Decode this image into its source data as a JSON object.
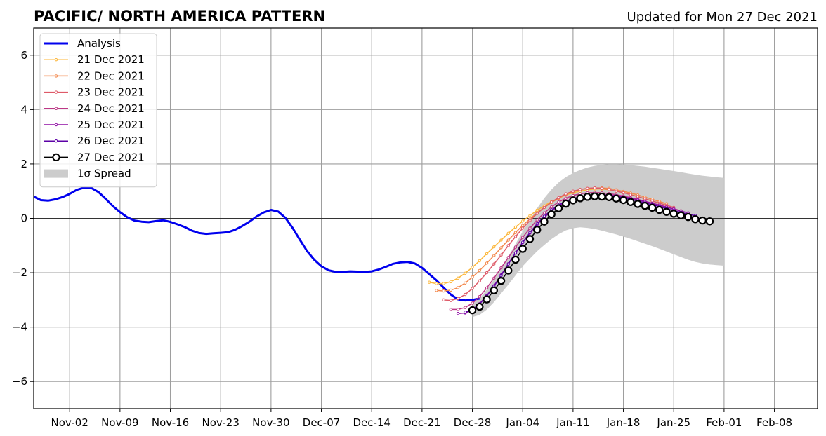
{
  "header": {
    "title": "PACIFIC/ NORTH AMERICA PATTERN",
    "updated": "Updated for Mon 27 Dec 2021"
  },
  "chart_data": {
    "type": "line",
    "title": "PACIFIC/ NORTH AMERICA PATTERN",
    "xlabel": "",
    "ylabel": "",
    "x_axis": "date",
    "xlim": [
      "2021-10-28",
      "2022-02-14"
    ],
    "ylim": [
      -7,
      7
    ],
    "y_ticks": [
      -6,
      -4,
      -2,
      0,
      2,
      4,
      6
    ],
    "y_tick_labels": [
      "−6",
      "−4",
      "−2",
      "0",
      "2",
      "4",
      "6"
    ],
    "x_ticks": [
      "2021-11-02",
      "2021-11-09",
      "2021-11-16",
      "2021-11-23",
      "2021-11-30",
      "2021-12-07",
      "2021-12-14",
      "2021-12-21",
      "2021-12-28",
      "2022-01-04",
      "2022-01-11",
      "2022-01-18",
      "2022-01-25",
      "2022-02-01",
      "2022-02-08"
    ],
    "x_tick_labels": [
      "Nov-02",
      "Nov-09",
      "Nov-16",
      "Nov-23",
      "Nov-30",
      "Dec-07",
      "Dec-14",
      "Dec-21",
      "Dec-28",
      "Jan-04",
      "Jan-11",
      "Jan-18",
      "Jan-25",
      "Feb-01",
      "Feb-08"
    ],
    "grid": true,
    "zero_line": true,
    "legend_position": "upper-left",
    "series": [
      {
        "name": "Analysis",
        "color": "#0000ee",
        "start": "2021-10-28",
        "values": [
          0.8,
          0.67,
          0.65,
          0.7,
          0.78,
          0.9,
          1.05,
          1.13,
          1.12,
          0.97,
          0.72,
          0.45,
          0.23,
          0.04,
          -0.08,
          -0.12,
          -0.14,
          -0.1,
          -0.07,
          -0.13,
          -0.22,
          -0.32,
          -0.45,
          -0.54,
          -0.57,
          -0.55,
          -0.53,
          -0.51,
          -0.42,
          -0.28,
          -0.12,
          0.07,
          0.22,
          0.31,
          0.25,
          0.02,
          -0.35,
          -0.78,
          -1.2,
          -1.52,
          -1.76,
          -1.91,
          -1.97,
          -1.97,
          -1.95,
          -1.96,
          -1.97,
          -1.95,
          -1.88,
          -1.78,
          -1.67,
          -1.62,
          -1.6,
          -1.66,
          -1.82,
          -2.05,
          -2.28,
          -2.55,
          -2.8,
          -2.98,
          -3.02,
          -3.0,
          -2.95
        ]
      },
      {
        "name": "21 Dec 2021",
        "color": "#fcb73a",
        "start": "2021-12-22",
        "values": [
          -2.35,
          -2.4,
          -2.4,
          -2.33,
          -2.2,
          -2.02,
          -1.8,
          -1.56,
          -1.3,
          -1.05,
          -0.8,
          -0.55,
          -0.32,
          -0.1,
          0.1,
          0.3,
          0.46,
          0.62,
          0.74,
          0.86,
          0.94,
          1.0,
          1.05,
          1.08,
          1.08,
          1.05,
          1.0,
          0.95,
          0.88,
          0.8,
          0.72,
          0.64,
          0.56,
          0.48
        ]
      },
      {
        "name": "22 Dec 2021",
        "color": "#f3884c",
        "start": "2021-12-23",
        "values": [
          -2.65,
          -2.67,
          -2.64,
          -2.55,
          -2.38,
          -2.16,
          -1.92,
          -1.65,
          -1.37,
          -1.08,
          -0.8,
          -0.52,
          -0.26,
          -0.02,
          0.2,
          0.4,
          0.58,
          0.74,
          0.88,
          0.98,
          1.06,
          1.1,
          1.12,
          1.12,
          1.1,
          1.05,
          0.99,
          0.93,
          0.86,
          0.78,
          0.7,
          0.62,
          0.54
        ]
      },
      {
        "name": "23 Dec 2021",
        "color": "#de5a68",
        "start": "2021-12-24",
        "values": [
          -3.0,
          -3.02,
          -2.95,
          -2.8,
          -2.58,
          -2.3,
          -2.0,
          -1.68,
          -1.35,
          -1.0,
          -0.67,
          -0.36,
          -0.08,
          0.18,
          0.4,
          0.6,
          0.76,
          0.9,
          1.0,
          1.06,
          1.1,
          1.12,
          1.1,
          1.06,
          1.0,
          0.94,
          0.87,
          0.8,
          0.72,
          0.64,
          0.56,
          0.48,
          0.4
        ]
      },
      {
        "name": "24 Dec 2021",
        "color": "#bd3786",
        "start": "2021-12-25",
        "values": [
          -3.35,
          -3.35,
          -3.28,
          -3.12,
          -2.88,
          -2.56,
          -2.2,
          -1.82,
          -1.44,
          -1.06,
          -0.7,
          -0.36,
          -0.06,
          0.2,
          0.42,
          0.6,
          0.74,
          0.84,
          0.9,
          0.94,
          0.95,
          0.94,
          0.91,
          0.87,
          0.82,
          0.76,
          0.7,
          0.63,
          0.56,
          0.49,
          0.42,
          0.35,
          0.28
        ]
      },
      {
        "name": "25 Dec 2021",
        "color": "#8f0da4",
        "start": "2021-12-26",
        "values": [
          -3.5,
          -3.48,
          -3.36,
          -3.14,
          -2.84,
          -2.48,
          -2.08,
          -1.67,
          -1.27,
          -0.89,
          -0.54,
          -0.23,
          0.04,
          0.27,
          0.46,
          0.6,
          0.7,
          0.78,
          0.83,
          0.86,
          0.87,
          0.86,
          0.83,
          0.79,
          0.74,
          0.68,
          0.62,
          0.55,
          0.48,
          0.41,
          0.34,
          0.27,
          0.2
        ]
      },
      {
        "name": "26 Dec 2021",
        "color": "#5c01a6",
        "start": "2021-12-27",
        "values": [
          -3.45,
          -3.35,
          -3.15,
          -2.86,
          -2.5,
          -2.1,
          -1.68,
          -1.27,
          -0.88,
          -0.52,
          -0.2,
          0.08,
          0.31,
          0.49,
          0.63,
          0.73,
          0.8,
          0.84,
          0.86,
          0.86,
          0.84,
          0.8,
          0.76,
          0.7,
          0.64,
          0.57,
          0.5,
          0.43,
          0.36,
          0.29,
          0.22,
          0.15,
          0.1
        ]
      },
      {
        "name": "27 Dec 2021",
        "color": "#000000",
        "marker": "open-circle",
        "start": "2021-12-28",
        "values": [
          -3.38,
          -3.25,
          -2.98,
          -2.65,
          -2.3,
          -1.92,
          -1.52,
          -1.12,
          -0.76,
          -0.42,
          -0.12,
          0.15,
          0.37,
          0.54,
          0.66,
          0.74,
          0.79,
          0.81,
          0.8,
          0.78,
          0.73,
          0.67,
          0.6,
          0.53,
          0.46,
          0.39,
          0.31,
          0.24,
          0.17,
          0.11,
          0.05,
          -0.03,
          -0.08,
          -0.11
        ]
      }
    ],
    "spread": {
      "name": "1σ Spread",
      "color": "#cccccc",
      "start": "2021-12-28",
      "upper": [
        -3.13,
        -2.95,
        -2.62,
        -2.25,
        -1.84,
        -1.4,
        -0.94,
        -0.48,
        -0.04,
        0.37,
        0.74,
        1.06,
        1.32,
        1.52,
        1.67,
        1.78,
        1.87,
        1.93,
        1.97,
        1.99,
        1.99,
        1.98,
        1.96,
        1.93,
        1.9,
        1.86,
        1.82,
        1.78,
        1.74,
        1.7,
        1.65,
        1.61,
        1.57,
        1.54,
        1.51,
        1.49
      ],
      "lower": [
        -3.63,
        -3.55,
        -3.36,
        -3.08,
        -2.76,
        -2.44,
        -2.1,
        -1.76,
        -1.48,
        -1.21,
        -0.98,
        -0.76,
        -0.58,
        -0.44,
        -0.36,
        -0.33,
        -0.35,
        -0.39,
        -0.45,
        -0.52,
        -0.59,
        -0.67,
        -0.75,
        -0.84,
        -0.93,
        -1.02,
        -1.12,
        -1.22,
        -1.32,
        -1.42,
        -1.52,
        -1.6,
        -1.66,
        -1.7,
        -1.72,
        -1.74
      ]
    }
  }
}
